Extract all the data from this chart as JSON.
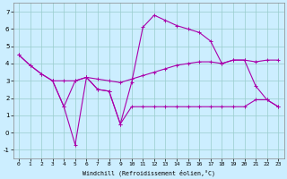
{
  "xlabel": "Windchill (Refroidissement éolien,°C)",
  "bg_color": "#cceeff",
  "grid_color": "#99cccc",
  "line_color": "#aa00aa",
  "xlim": [
    -0.5,
    23.5
  ],
  "ylim": [
    -1.5,
    7.5
  ],
  "xticks": [
    0,
    1,
    2,
    3,
    4,
    5,
    6,
    7,
    8,
    9,
    10,
    11,
    12,
    13,
    14,
    15,
    16,
    17,
    18,
    19,
    20,
    21,
    22,
    23
  ],
  "yticks": [
    -1,
    0,
    1,
    2,
    3,
    4,
    5,
    6,
    7
  ],
  "lineA_x": [
    0,
    1,
    2,
    3,
    4,
    5,
    6,
    7,
    8,
    9,
    10,
    11,
    12,
    13,
    14,
    15,
    16,
    17,
    18,
    19,
    20,
    21,
    22,
    23
  ],
  "lineA_y": [
    4.5,
    3.9,
    3.4,
    3.0,
    3.0,
    3.0,
    3.2,
    3.1,
    3.0,
    2.9,
    3.1,
    3.3,
    3.5,
    3.7,
    3.9,
    4.0,
    4.1,
    4.1,
    4.0,
    4.2,
    4.2,
    4.1,
    4.2,
    4.2
  ],
  "lineB_x": [
    0,
    1,
    2,
    3,
    4,
    5,
    6,
    7,
    8,
    9,
    10,
    11,
    12,
    13,
    14,
    15,
    16,
    17,
    18,
    19,
    20,
    21,
    22,
    23
  ],
  "lineB_y": [
    4.5,
    3.9,
    3.4,
    3.0,
    1.5,
    3.0,
    3.2,
    2.5,
    2.4,
    0.5,
    2.9,
    6.1,
    6.8,
    6.5,
    6.2,
    6.0,
    5.8,
    5.3,
    4.0,
    4.2,
    4.2,
    2.7,
    1.9,
    1.5
  ],
  "lineC_x": [
    3,
    4,
    5,
    6,
    7,
    8,
    9,
    10,
    11,
    12,
    13,
    14,
    15,
    16,
    17,
    18,
    19,
    20,
    21,
    22,
    23
  ],
  "lineC_y": [
    3.0,
    1.5,
    -0.7,
    3.2,
    2.5,
    2.4,
    0.5,
    1.5,
    1.5,
    1.5,
    1.5,
    1.5,
    1.5,
    1.5,
    1.5,
    1.5,
    1.5,
    1.5,
    1.9,
    1.9,
    1.5
  ]
}
